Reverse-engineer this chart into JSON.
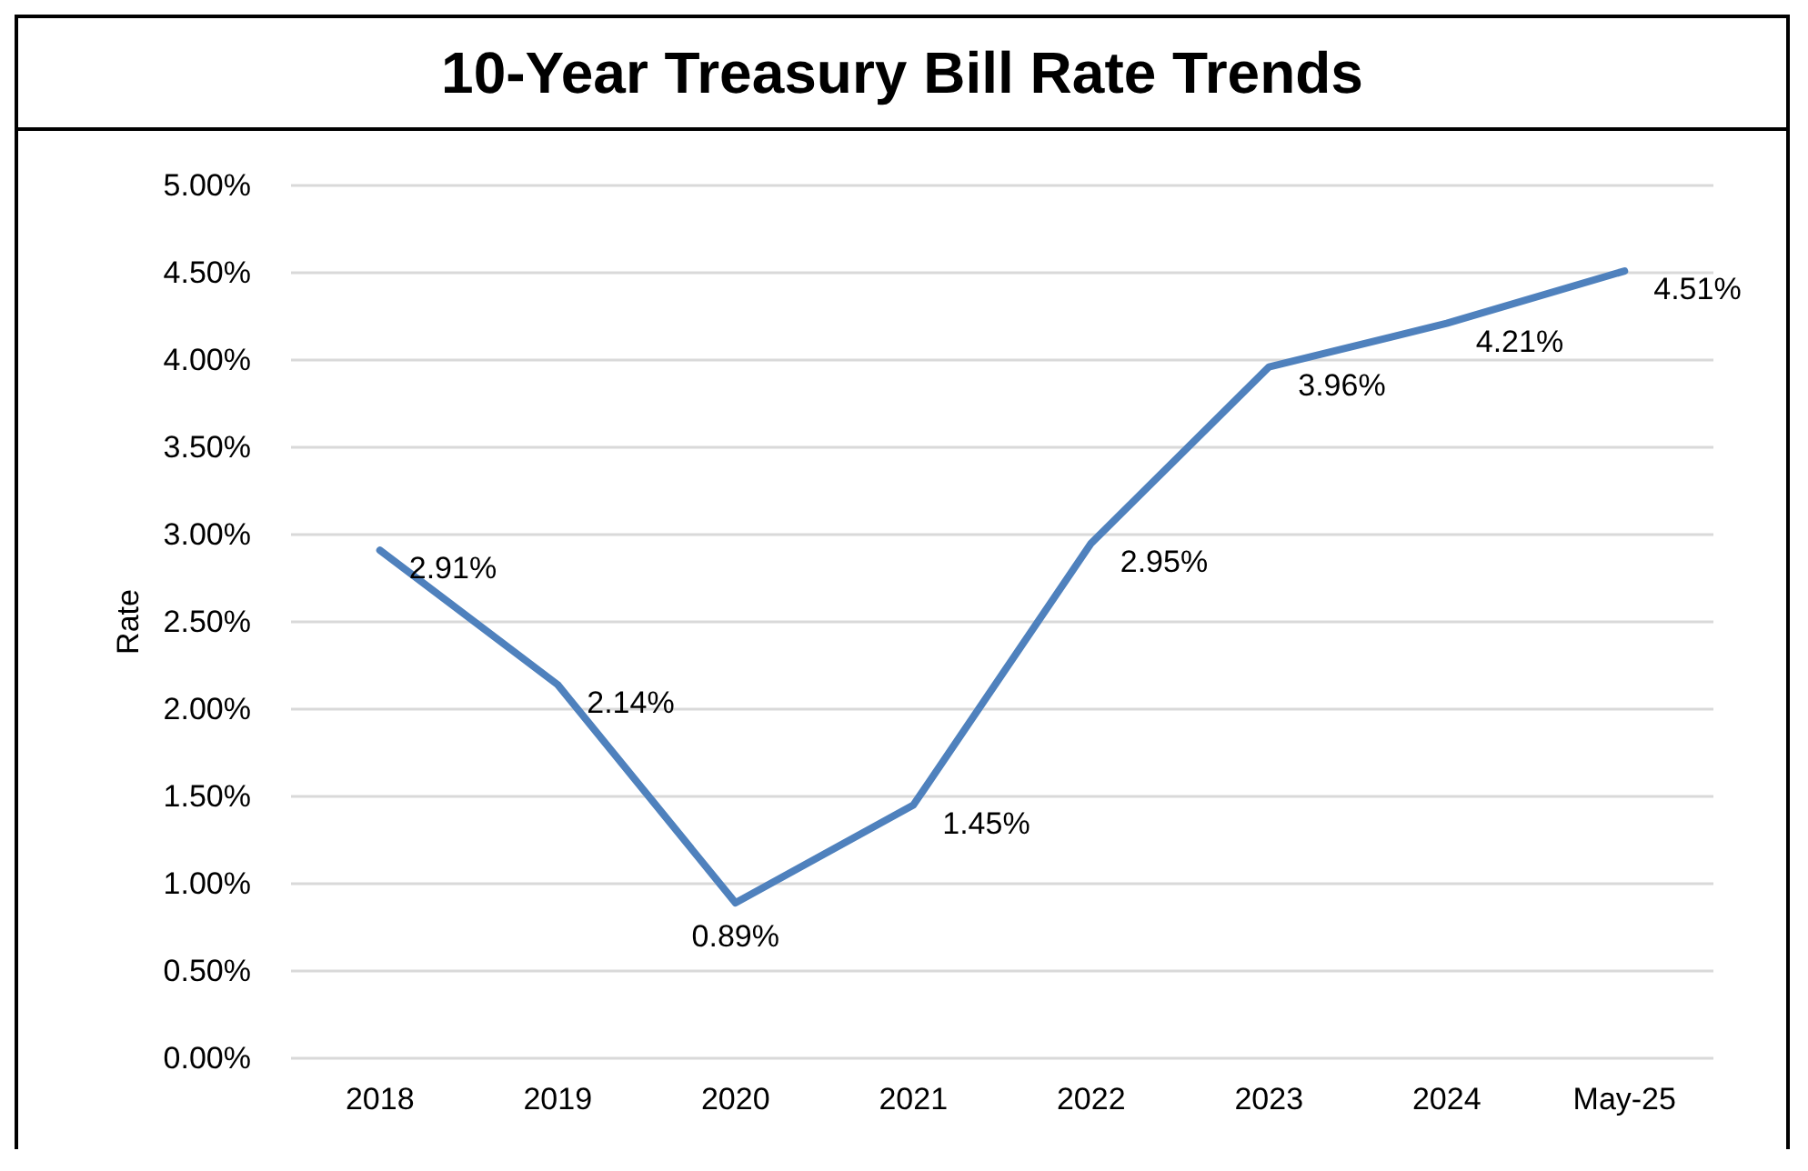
{
  "chart_data": {
    "type": "line",
    "title": "10-Year Treasury Bill Rate Trends",
    "ylabel": "Rate",
    "categories": [
      "2018",
      "2019",
      "2020",
      "2021",
      "2022",
      "2023",
      "2024",
      "May-25"
    ],
    "series": [
      {
        "color": "#4f81bd",
        "values": [
          2.91,
          2.14,
          0.89,
          1.45,
          2.95,
          3.96,
          4.21,
          4.51
        ],
        "value_labels": [
          "2.91%",
          "2.14%",
          "0.89%",
          "1.45%",
          "2.95%",
          "3.96%",
          "4.21%",
          "4.51%"
        ]
      }
    ],
    "ylim": [
      0,
      5
    ],
    "yticks": [
      {
        "value": 0,
        "label": "0.00%"
      },
      {
        "value": 0.5,
        "label": "0.50%"
      },
      {
        "value": 1,
        "label": "1.00%"
      },
      {
        "value": 1.5,
        "label": "1.50%"
      },
      {
        "value": 2,
        "label": "2.00%"
      },
      {
        "value": 2.5,
        "label": "2.50%"
      },
      {
        "value": 3,
        "label": "3.00%"
      },
      {
        "value": 3.5,
        "label": "3.50%"
      },
      {
        "value": 4,
        "label": "4.00%"
      },
      {
        "value": 4.5,
        "label": "4.50%"
      },
      {
        "value": 5,
        "label": "5.00%"
      }
    ],
    "grid": "y",
    "marker": "none",
    "line_style": "solid"
  }
}
